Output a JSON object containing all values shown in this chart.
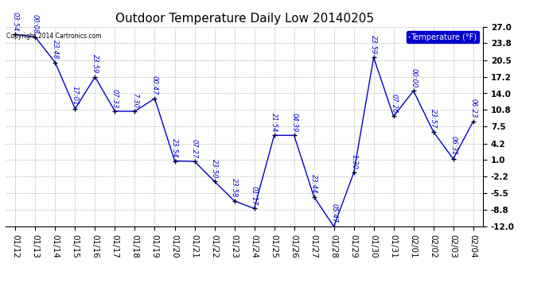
{
  "title": "Outdoor Temperature Daily Low 20140205",
  "copyright_text": "Copyright 2014 Cartronics.com",
  "legend_label": "Temperature (°F)",
  "x_labels": [
    "01/12",
    "01/13",
    "01/14",
    "01/15",
    "01/16",
    "01/17",
    "01/18",
    "01/19",
    "01/20",
    "01/21",
    "01/22",
    "01/23",
    "01/24",
    "01/25",
    "01/26",
    "01/27",
    "01/28",
    "01/29",
    "01/30",
    "01/31",
    "02/01",
    "02/02",
    "02/03",
    "02/04"
  ],
  "y_values": [
    25.5,
    25.0,
    20.0,
    11.0,
    17.2,
    10.5,
    10.5,
    13.0,
    0.8,
    0.7,
    -3.2,
    -7.0,
    -8.5,
    5.8,
    5.8,
    -6.2,
    -12.0,
    -1.5,
    21.0,
    9.5,
    14.5,
    6.5,
    1.2,
    8.5
  ],
  "point_labels": [
    "03:54",
    "00:08",
    "23:48",
    "17:01",
    "23:59",
    "07:33",
    "7:30",
    "00:47",
    "23:54",
    "07:27",
    "23:50",
    "23:58",
    "01:17",
    "21:54",
    "04:39",
    "23:44",
    "05:47",
    "1:30",
    "23:59",
    "07:26",
    "00:00",
    "23:57",
    "06:31",
    "06:23"
  ],
  "line_color": "#0000CC",
  "marker_color": "#000033",
  "bg_color": "#ffffff",
  "grid_color": "#aaaaaa",
  "ylim": [
    -12.0,
    27.0
  ],
  "yticks": [
    -12.0,
    -8.8,
    -5.5,
    -2.2,
    1.0,
    4.2,
    7.5,
    10.8,
    14.0,
    17.2,
    20.5,
    23.8,
    27.0
  ],
  "legend_bg": "#0000CC",
  "legend_fg": "#ffffff",
  "title_fontsize": 11,
  "point_label_fontsize": 6,
  "tick_fontsize": 7.5
}
